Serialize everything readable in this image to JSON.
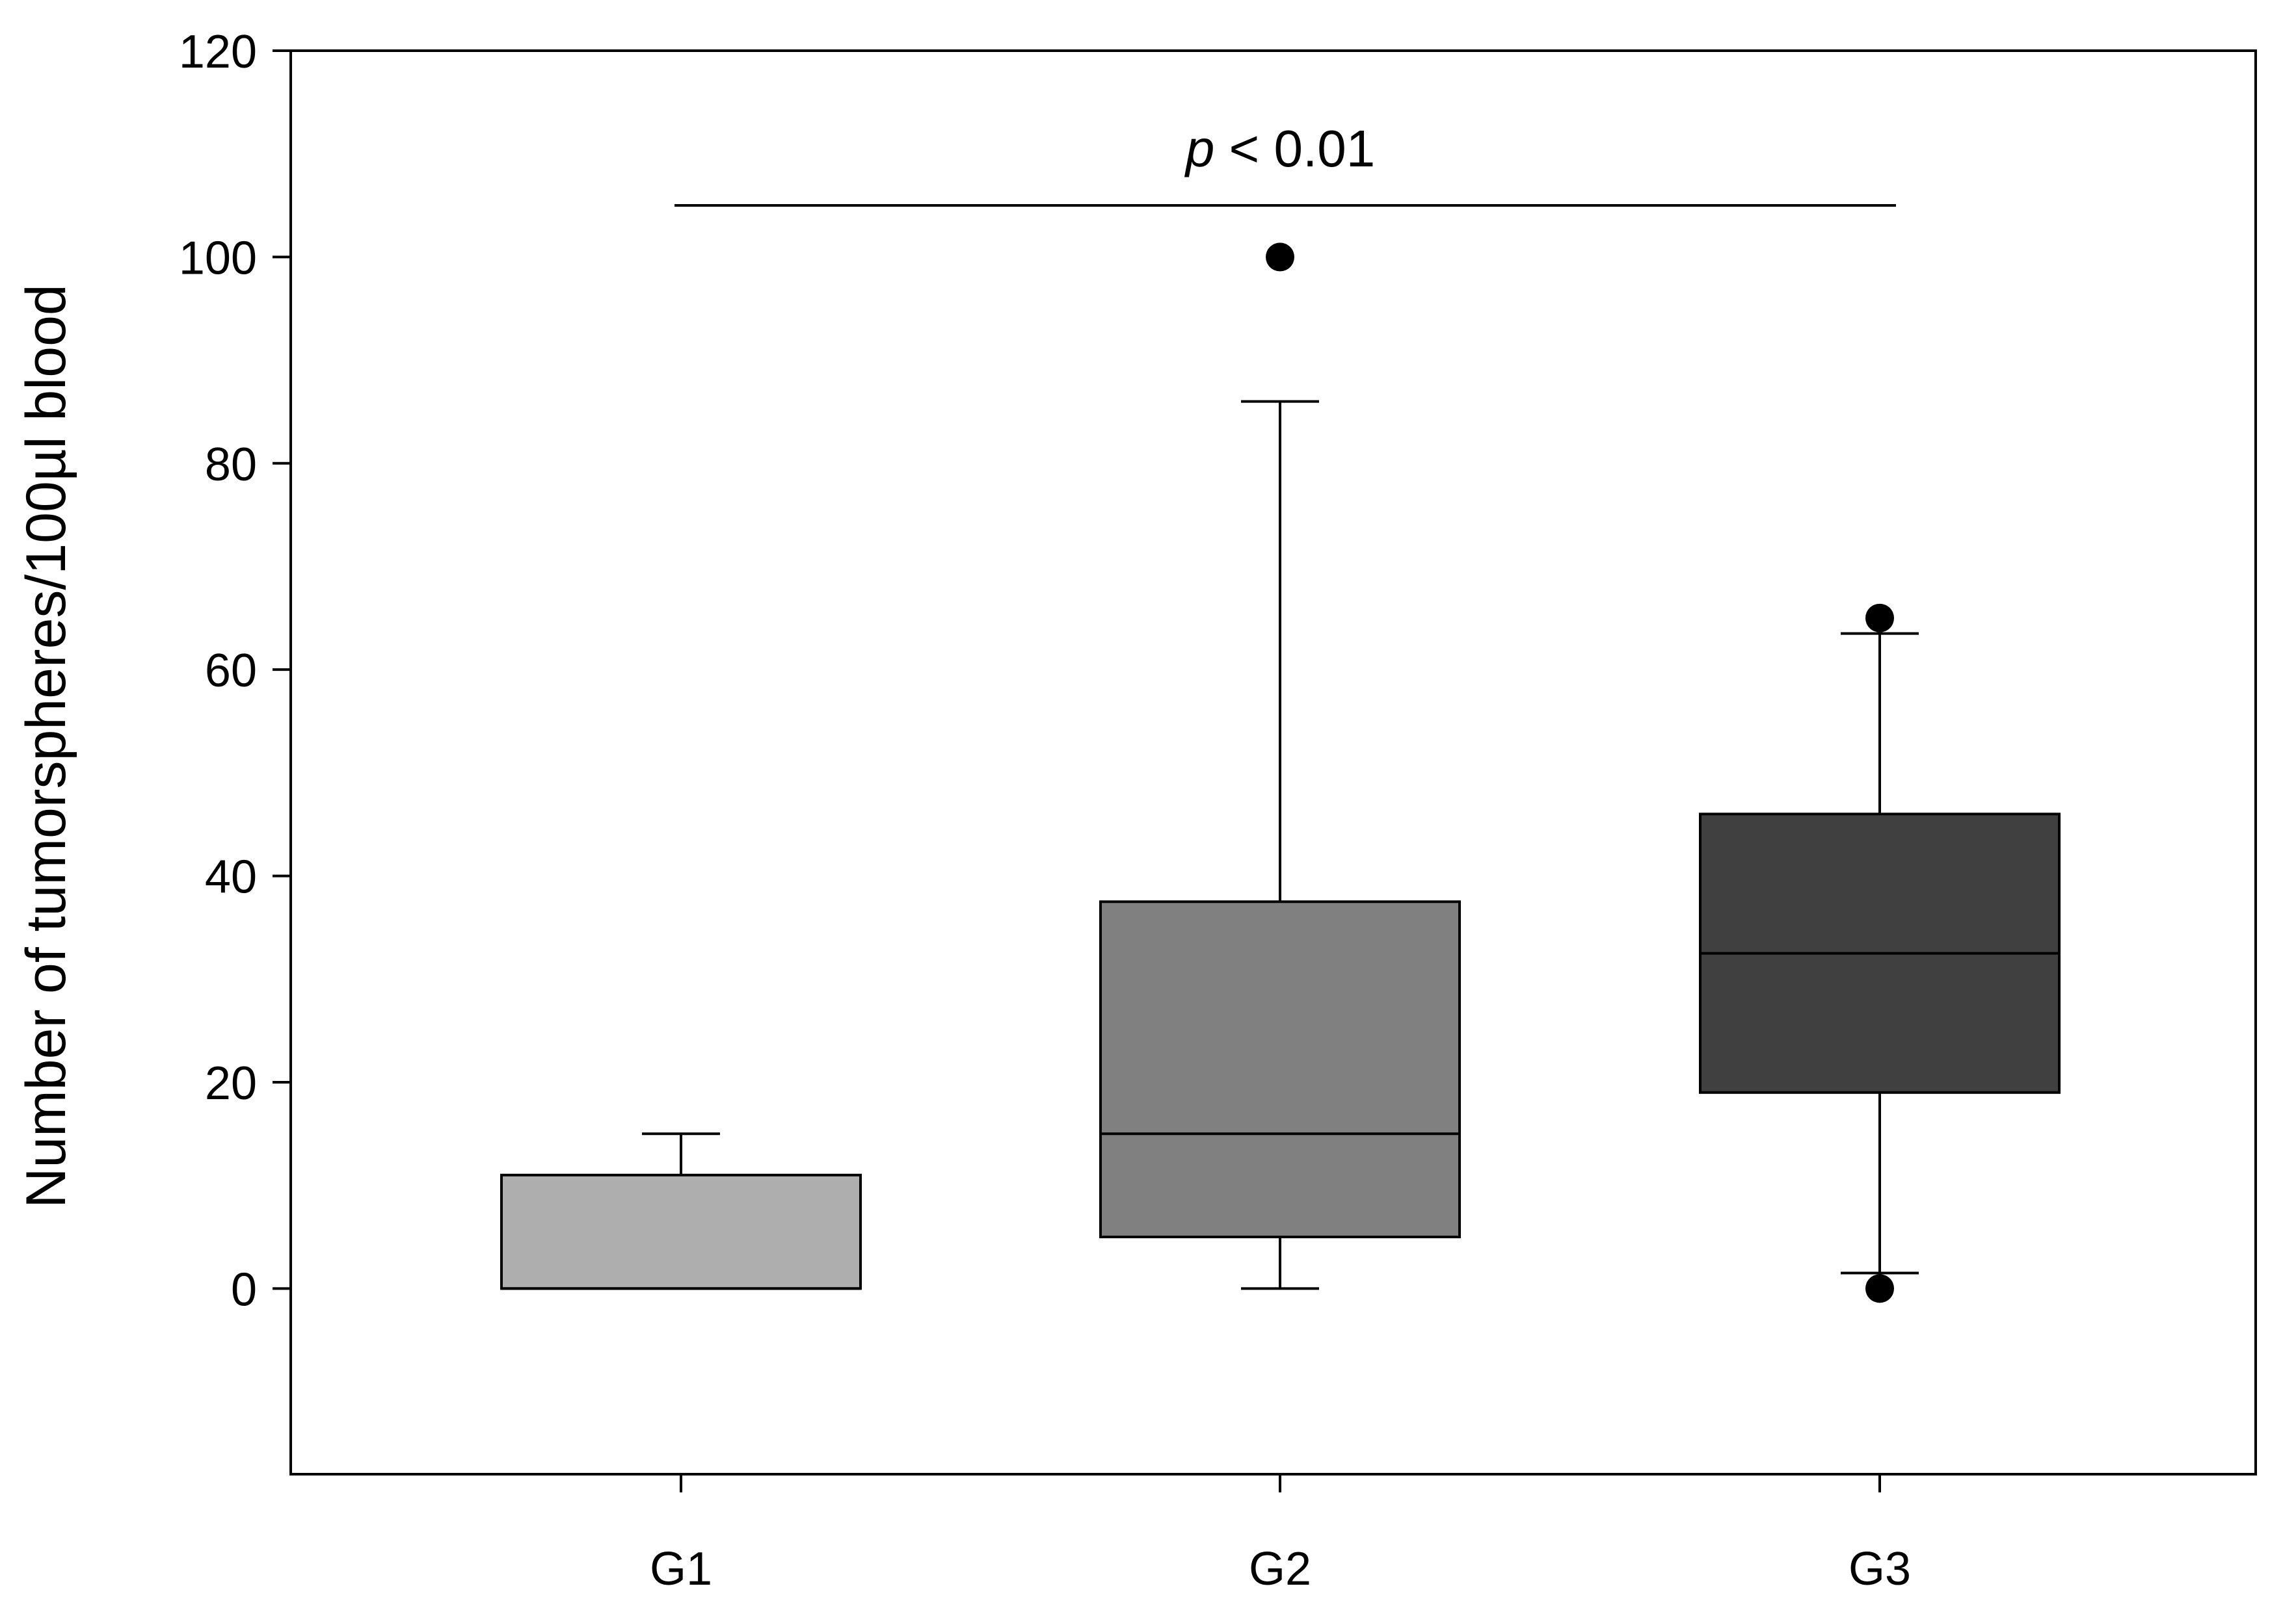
{
  "chart_data": {
    "type": "box",
    "ylabel": "Number of tumorspheres/100µl blood",
    "ylim": [
      -18,
      120
    ],
    "yticks": [
      0,
      20,
      40,
      60,
      80,
      100,
      120
    ],
    "grid": false,
    "categories": [
      "G1",
      "G2",
      "G3"
    ],
    "boxes": [
      {
        "category": "G1",
        "whisker_low": 0,
        "q1": 0,
        "median": 0,
        "q3": 11,
        "whisker_high": 15,
        "outliers": [],
        "fill": "#aeaeae"
      },
      {
        "category": "G2",
        "whisker_low": 0,
        "q1": 5,
        "median": 15,
        "q3": 37.5,
        "whisker_high": 86,
        "outliers": [
          100
        ],
        "fill": "#808080"
      },
      {
        "category": "G3",
        "whisker_low": 1.5,
        "q1": 19,
        "median": 32.5,
        "q3": 46,
        "whisker_high": 63.5,
        "outliers": [
          0,
          65
        ],
        "fill": "#404040"
      }
    ],
    "annotation": {
      "p_symbol": "p",
      "p_text": " < 0.01",
      "bracket_y": 105,
      "from_category": "G1",
      "to_category": "G3"
    }
  }
}
